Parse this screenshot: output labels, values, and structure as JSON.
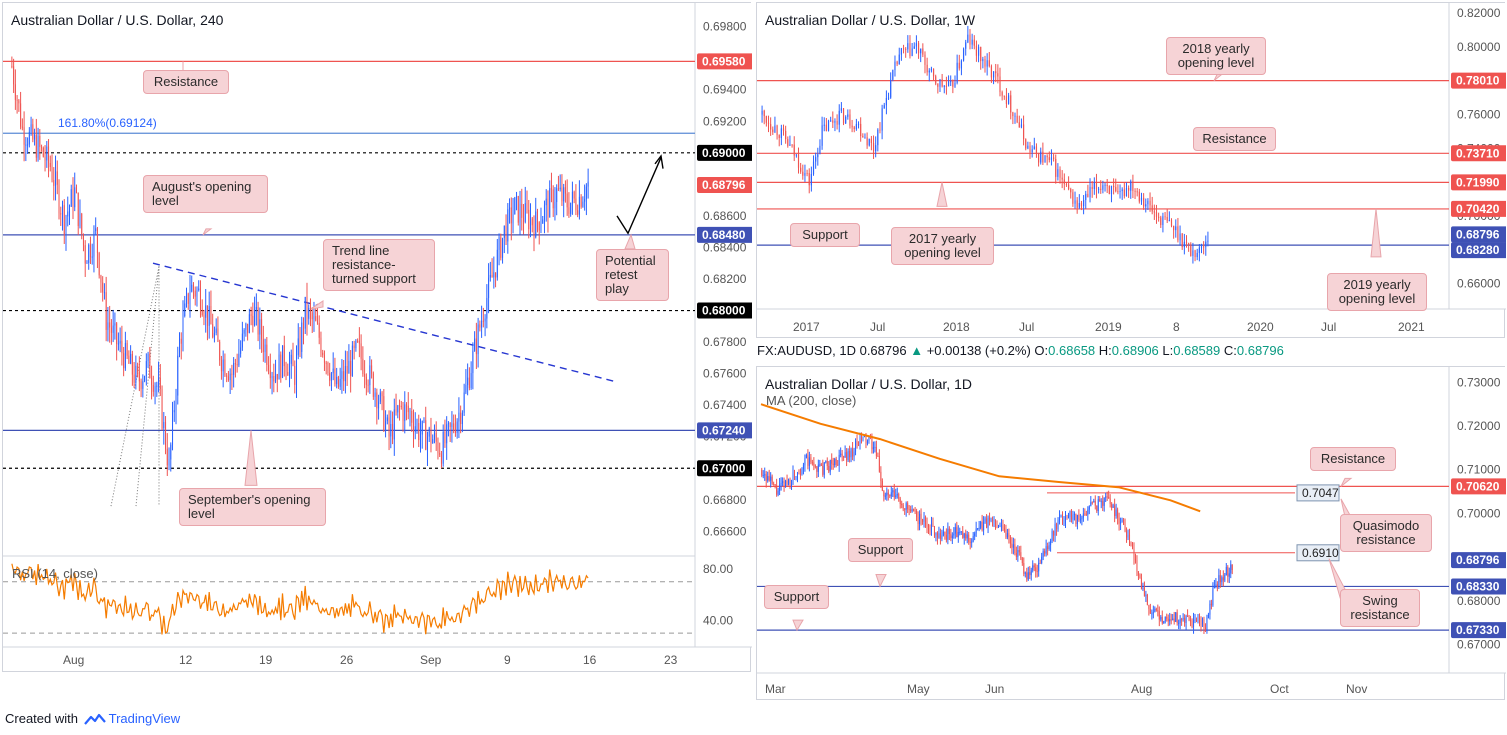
{
  "footer": {
    "created_with": "Created with",
    "brand": "TradingView",
    "logo_icon": "tradingview-logo-icon"
  },
  "info_bar": {
    "symbol": "FX:AUDUSD, 1D",
    "last": "0.68796",
    "change": "+0.00138 (+0.2%)",
    "open_label": "O:",
    "open": "0.68658",
    "high_label": "H:",
    "high": "0.68906",
    "low_label": "L:",
    "low": "0.68589",
    "close_label": "C:",
    "close": "0.68796",
    "up_arrow_icon": "triangle-up-icon"
  },
  "colors": {
    "up": "#2962ff",
    "down": "#ef5350",
    "resistance": "#ef5350",
    "support": "#3f51b5",
    "ma": "#f57c00",
    "rsi": "#f57c00",
    "label_bg": "#f6d3d6"
  },
  "chart_data": [
    {
      "id": "h4",
      "type": "candlestick",
      "title": "Australian Dollar / U.S. Dollar, 240",
      "ylim": [
        0.6645,
        0.6995
      ],
      "y_ticks": [
        "0.69800",
        "0.69600",
        "0.69400",
        "0.69200",
        "0.69000",
        "0.68800",
        "0.68600",
        "0.68400",
        "0.68200",
        "0.68000",
        "0.67800",
        "0.67600",
        "0.67400",
        "0.67200",
        "0.67000",
        "0.66800",
        "0.66600"
      ],
      "x_ticks": [
        "Aug",
        "12",
        "19",
        "26",
        "Sep",
        "9",
        "16",
        "23"
      ],
      "levels": [
        {
          "value": 0.6958,
          "label": "0.69580",
          "color": "#ef5350",
          "style": "solid"
        },
        {
          "value": 0.69124,
          "label": "",
          "color": "#5b8cd6",
          "style": "solid"
        },
        {
          "value": 0.69,
          "label": "0.69000",
          "color": "#000000",
          "style": "dotted"
        },
        {
          "value": 0.6848,
          "label": "0.68480",
          "color": "#3f51b5",
          "style": "solid"
        },
        {
          "value": 0.68,
          "label": "0.68000",
          "color": "#000000",
          "style": "dotted"
        },
        {
          "value": 0.6724,
          "label": "0.67240",
          "color": "#3f51b5",
          "style": "solid"
        },
        {
          "value": 0.67,
          "label": "0.67000",
          "color": "#000000",
          "style": "dotted"
        }
      ],
      "current": {
        "value": 0.68796,
        "label": "0.68796"
      },
      "fib_label": "161.80%(0.69124)",
      "annotations": [
        "Resistance",
        "August's opening\nlevel",
        "Trend line\nresistance-\nturned support",
        "Potential\nretest\nplay",
        "September's opening\nlevel"
      ],
      "rsi": {
        "label": "RSI (14, close)",
        "ylim": [
          20,
          90
        ],
        "ticks": [
          "80.00",
          "40.00"
        ],
        "bands": [
          70,
          30
        ]
      },
      "waypoints": [
        [
          0,
          0.6955
        ],
        [
          6,
          0.6915
        ],
        [
          14,
          0.6905
        ],
        [
          22,
          0.6892
        ],
        [
          30,
          0.6858
        ],
        [
          36,
          0.6875
        ],
        [
          42,
          0.6835
        ],
        [
          48,
          0.6848
        ],
        [
          54,
          0.6795
        ],
        [
          60,
          0.678
        ],
        [
          66,
          0.6768
        ],
        [
          72,
          0.6755
        ],
        [
          78,
          0.6765
        ],
        [
          84,
          0.675
        ],
        [
          90,
          0.67
        ],
        [
          96,
          0.678
        ],
        [
          102,
          0.6815
        ],
        [
          108,
          0.681
        ],
        [
          114,
          0.679
        ],
        [
          120,
          0.677
        ],
        [
          126,
          0.676
        ],
        [
          132,
          0.678
        ],
        [
          138,
          0.68
        ],
        [
          144,
          0.678
        ],
        [
          150,
          0.676
        ],
        [
          156,
          0.677
        ],
        [
          162,
          0.676
        ],
        [
          168,
          0.68
        ],
        [
          174,
          0.679
        ],
        [
          180,
          0.677
        ],
        [
          186,
          0.675
        ],
        [
          192,
          0.6762
        ],
        [
          198,
          0.6775
        ],
        [
          204,
          0.676
        ],
        [
          210,
          0.6745
        ],
        [
          216,
          0.672
        ],
        [
          222,
          0.6738
        ],
        [
          228,
          0.6735
        ],
        [
          234,
          0.6722
        ],
        [
          240,
          0.672
        ],
        [
          246,
          0.6712
        ],
        [
          252,
          0.6725
        ],
        [
          258,
          0.674
        ],
        [
          264,
          0.677
        ],
        [
          270,
          0.68
        ],
        [
          276,
          0.6825
        ],
        [
          282,
          0.685
        ],
        [
          288,
          0.6865
        ],
        [
          294,
          0.686
        ],
        [
          300,
          0.6855
        ],
        [
          306,
          0.6865
        ],
        [
          312,
          0.6875
        ],
        [
          318,
          0.6868
        ],
        [
          324,
          0.687
        ],
        [
          330,
          0.688
        ]
      ]
    },
    {
      "id": "weekly",
      "type": "candlestick",
      "title": "Australian Dollar / U.S. Dollar, 1W",
      "ylim": [
        0.645,
        0.826
      ],
      "y_ticks": [
        "0.82000",
        "0.80000",
        "0.78000",
        "0.76000",
        "0.74000",
        "0.72000",
        "0.70000",
        "0.68000",
        "0.66000"
      ],
      "x_ticks": [
        "2017",
        "Jul",
        "2018",
        "Jul",
        "2019",
        "8",
        "2020",
        "Jul",
        "2021"
      ],
      "levels": [
        {
          "value": 0.7801,
          "label": "0.78010",
          "color": "#ef5350"
        },
        {
          "value": 0.7371,
          "label": "0.73710",
          "color": "#ef5350"
        },
        {
          "value": 0.7199,
          "label": "0.71990",
          "color": "#ef5350"
        },
        {
          "value": 0.7042,
          "label": "0.70420",
          "color": "#ef5350"
        },
        {
          "value": 0.6828,
          "label": "0.68280",
          "color": "#3f51b5"
        }
      ],
      "current": {
        "value": 0.68796,
        "label": "0.68796"
      },
      "annotations": [
        "2018 yearly\nopening level",
        "Resistance",
        "Support",
        "2017 yearly\nopening level",
        "2019 yearly\nopening level"
      ],
      "waypoints": [
        [
          0,
          0.76
        ],
        [
          8,
          0.75
        ],
        [
          16,
          0.735
        ],
        [
          22,
          0.72
        ],
        [
          28,
          0.75
        ],
        [
          36,
          0.76
        ],
        [
          44,
          0.755
        ],
        [
          52,
          0.74
        ],
        [
          58,
          0.77
        ],
        [
          64,
          0.795
        ],
        [
          72,
          0.8
        ],
        [
          80,
          0.78
        ],
        [
          88,
          0.775
        ],
        [
          96,
          0.805
        ],
        [
          104,
          0.79
        ],
        [
          110,
          0.78
        ],
        [
          118,
          0.76
        ],
        [
          124,
          0.74
        ],
        [
          130,
          0.735
        ],
        [
          136,
          0.73
        ],
        [
          142,
          0.715
        ],
        [
          148,
          0.705
        ],
        [
          154,
          0.715
        ],
        [
          160,
          0.72
        ],
        [
          166,
          0.71
        ],
        [
          172,
          0.72
        ],
        [
          178,
          0.71
        ],
        [
          184,
          0.7
        ],
        [
          190,
          0.695
        ],
        [
          194,
          0.69
        ],
        [
          200,
          0.679
        ],
        [
          204,
          0.679
        ],
        [
          208,
          0.688
        ]
      ]
    },
    {
      "id": "daily",
      "type": "candlestick",
      "title": "Australian Dollar / U.S. Dollar, 1D",
      "ylim": [
        0.6635,
        0.7335
      ],
      "y_ticks": [
        "0.73000",
        "0.72000",
        "0.71000",
        "0.70000",
        "0.69000",
        "0.68000",
        "0.67000"
      ],
      "x_ticks": [
        "Mar",
        "May",
        "Jun",
        "Aug",
        "Oct",
        "Nov"
      ],
      "levels": [
        {
          "value": 0.7062,
          "label": "0.70620",
          "color": "#ef5350"
        },
        {
          "value": 0.6833,
          "label": "0.68330",
          "color": "#3f51b5"
        },
        {
          "value": 0.6733,
          "label": "0.67330",
          "color": "#3f51b5"
        }
      ],
      "short_levels": [
        {
          "value": 0.7047,
          "label": "0.7047"
        },
        {
          "value": 0.691,
          "label": "0.6910"
        }
      ],
      "current": {
        "value": 0.68796,
        "label": "0.68796"
      },
      "ma_label": "MA (200, close)",
      "ma": [
        [
          0,
          0.725
        ],
        [
          40,
          0.7205
        ],
        [
          80,
          0.717
        ],
        [
          120,
          0.7125
        ],
        [
          160,
          0.7085
        ],
        [
          200,
          0.7072
        ],
        [
          240,
          0.706
        ],
        [
          275,
          0.703
        ],
        [
          295,
          0.7005
        ]
      ],
      "annotations": [
        "Resistance",
        "Quasimodo\nresistance",
        "Support",
        "Swing\nresistance",
        "Support"
      ],
      "waypoints": [
        [
          0,
          0.71
        ],
        [
          10,
          0.705
        ],
        [
          20,
          0.708
        ],
        [
          30,
          0.712
        ],
        [
          40,
          0.71
        ],
        [
          50,
          0.712
        ],
        [
          60,
          0.714
        ],
        [
          68,
          0.717
        ],
        [
          74,
          0.716
        ],
        [
          78,
          0.712
        ],
        [
          82,
          0.704
        ],
        [
          90,
          0.704
        ],
        [
          100,
          0.7
        ],
        [
          110,
          0.698
        ],
        [
          120,
          0.695
        ],
        [
          130,
          0.6955
        ],
        [
          140,
          0.694
        ],
        [
          150,
          0.698
        ],
        [
          160,
          0.698
        ],
        [
          170,
          0.692
        ],
        [
          178,
          0.686
        ],
        [
          186,
          0.688
        ],
        [
          192,
          0.693
        ],
        [
          200,
          0.698
        ],
        [
          208,
          0.7
        ],
        [
          214,
          0.698
        ],
        [
          220,
          0.702
        ],
        [
          226,
          0.702
        ],
        [
          232,
          0.704
        ],
        [
          238,
          0.7
        ],
        [
          244,
          0.697
        ],
        [
          250,
          0.69
        ],
        [
          256,
          0.683
        ],
        [
          262,
          0.677
        ],
        [
          270,
          0.676
        ],
        [
          278,
          0.676
        ],
        [
          286,
          0.675
        ],
        [
          292,
          0.675
        ],
        [
          298,
          0.674
        ],
        [
          304,
          0.683
        ],
        [
          310,
          0.686
        ],
        [
          316,
          0.6875
        ]
      ]
    }
  ]
}
